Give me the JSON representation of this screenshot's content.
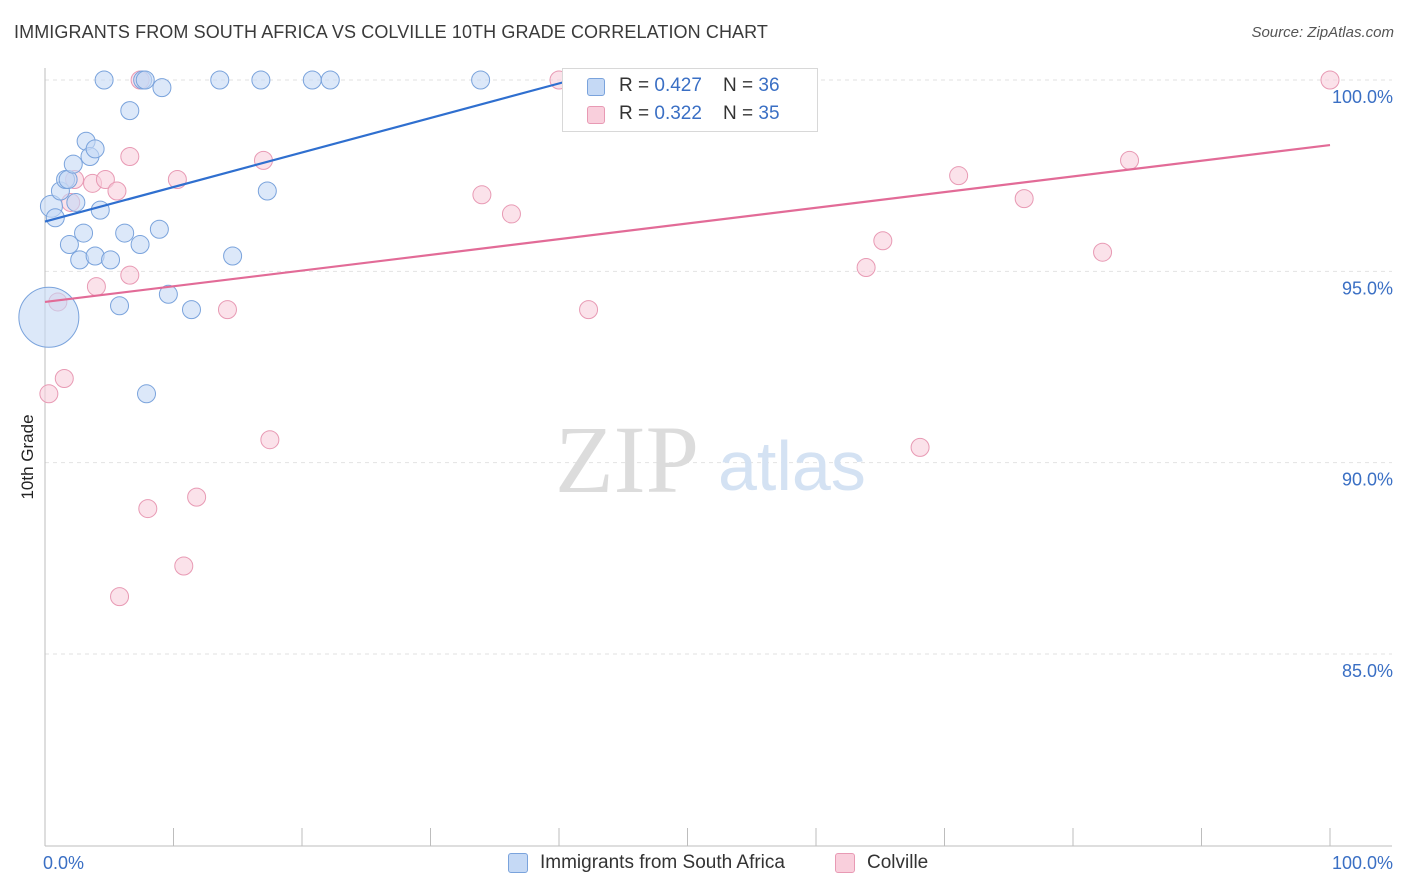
{
  "title": "IMMIGRANTS FROM SOUTH AFRICA VS COLVILLE 10TH GRADE CORRELATION CHART",
  "source": "Source: ZipAtlas.com",
  "watermark": {
    "zip": "ZIP",
    "atlas": "atlas"
  },
  "legend": {
    "blue": {
      "r_label": "R = ",
      "r_value": "0.427",
      "n_label": "N = ",
      "n_value": "36"
    },
    "pink": {
      "r_label": "R = ",
      "r_value": "0.322",
      "n_label": "N = ",
      "n_value": "35"
    }
  },
  "chart_data": {
    "type": "scatter",
    "title": "IMMIGRANTS FROM SOUTH AFRICA VS COLVILLE 10TH GRADE CORRELATION CHART",
    "xlabel": "",
    "ylabel": "10th Grade",
    "xlim": [
      0,
      100
    ],
    "ylim": [
      80.5,
      100.7
    ],
    "x_tick_labels": [
      "0.0%",
      "100.0%"
    ],
    "y_ticks": [
      {
        "value": 100,
        "label": "100.0%"
      },
      {
        "value": 95,
        "label": "95.0%"
      },
      {
        "value": 90,
        "label": "90.0%"
      },
      {
        "value": 85,
        "label": "85.0%"
      }
    ],
    "grid": true,
    "legend_position": "top-center",
    "colors": {
      "blue_fill": "#c5d9f5",
      "blue_stroke": "#7aa3dc",
      "blue_line": "#2f6fcf",
      "pink_fill": "#f9cfdc",
      "pink_stroke": "#e89ab4",
      "pink_line": "#e26b97",
      "tick_label": "#3a6fc4",
      "grid": "#e2e2e2"
    },
    "series": [
      {
        "name": "Immigrants from South Africa",
        "color": "blue",
        "r": 0.427,
        "n": 36,
        "trend": {
          "x": [
            0,
            41
          ],
          "y": [
            96.3,
            100.0
          ]
        },
        "points": [
          [
            0.3,
            93.8,
            30
          ],
          [
            0.5,
            96.7,
            11
          ],
          [
            0.8,
            96.4,
            9
          ],
          [
            1.2,
            97.1,
            9
          ],
          [
            1.6,
            97.4,
            9
          ],
          [
            1.8,
            97.4,
            9
          ],
          [
            1.9,
            95.7,
            9
          ],
          [
            2.2,
            97.8,
            9
          ],
          [
            2.4,
            96.8,
            9
          ],
          [
            2.7,
            95.3,
            9
          ],
          [
            3.0,
            96.0,
            9
          ],
          [
            3.2,
            98.4,
            9
          ],
          [
            3.5,
            98.0,
            9
          ],
          [
            3.9,
            95.4,
            9
          ],
          [
            3.9,
            98.2,
            9
          ],
          [
            4.3,
            96.6,
            9
          ],
          [
            4.6,
            100.0,
            9
          ],
          [
            5.1,
            95.3,
            9
          ],
          [
            5.8,
            94.1,
            9
          ],
          [
            6.2,
            96.0,
            9
          ],
          [
            6.6,
            99.2,
            9
          ],
          [
            7.4,
            95.7,
            9
          ],
          [
            7.6,
            100.0,
            9
          ],
          [
            7.8,
            100.0,
            9
          ],
          [
            7.9,
            91.8,
            9
          ],
          [
            8.9,
            96.1,
            9
          ],
          [
            9.1,
            99.8,
            9
          ],
          [
            9.6,
            94.4,
            9
          ],
          [
            11.4,
            94.0,
            9
          ],
          [
            13.6,
            100.0,
            9
          ],
          [
            14.6,
            95.4,
            9
          ],
          [
            16.8,
            100.0,
            9
          ],
          [
            17.3,
            97.1,
            9
          ],
          [
            20.8,
            100.0,
            9
          ],
          [
            22.2,
            100.0,
            9
          ],
          [
            33.9,
            100.0,
            9
          ]
        ]
      },
      {
        "name": "Colville",
        "color": "pink",
        "r": 0.322,
        "n": 35,
        "trend": {
          "x": [
            0,
            100
          ],
          "y": [
            94.2,
            98.3
          ]
        },
        "points": [
          [
            0.3,
            91.8,
            9
          ],
          [
            1.0,
            94.2,
            9
          ],
          [
            1.5,
            92.2,
            9
          ],
          [
            2.0,
            96.8,
            9
          ],
          [
            2.3,
            97.4,
            9
          ],
          [
            3.7,
            97.3,
            9
          ],
          [
            4.0,
            94.6,
            9
          ],
          [
            4.7,
            97.4,
            9
          ],
          [
            5.6,
            97.1,
            9
          ],
          [
            5.8,
            86.5,
            9
          ],
          [
            6.6,
            98.0,
            9
          ],
          [
            6.6,
            94.9,
            9
          ],
          [
            7.4,
            100.0,
            9
          ],
          [
            8.0,
            88.8,
            9
          ],
          [
            10.3,
            97.4,
            9
          ],
          [
            10.8,
            87.3,
            9
          ],
          [
            11.8,
            89.1,
            9
          ],
          [
            14.2,
            94.0,
            9
          ],
          [
            17.0,
            97.9,
            9
          ],
          [
            17.5,
            90.6,
            9
          ],
          [
            34.0,
            97.0,
            9
          ],
          [
            36.3,
            96.5,
            9
          ],
          [
            40.0,
            100.0,
            9
          ],
          [
            42.3,
            94.0,
            9
          ],
          [
            46.0,
            100.0,
            9
          ],
          [
            54.0,
            100.0,
            9
          ],
          [
            63.9,
            95.1,
            9
          ],
          [
            65.2,
            95.8,
            9
          ],
          [
            68.1,
            90.4,
            9
          ],
          [
            71.1,
            97.5,
            9
          ],
          [
            76.2,
            96.9,
            9
          ],
          [
            82.3,
            95.5,
            9
          ],
          [
            84.4,
            97.9,
            9
          ],
          [
            100.0,
            100.0,
            9
          ],
          [
            45.0,
            100.0,
            9
          ]
        ]
      }
    ]
  }
}
